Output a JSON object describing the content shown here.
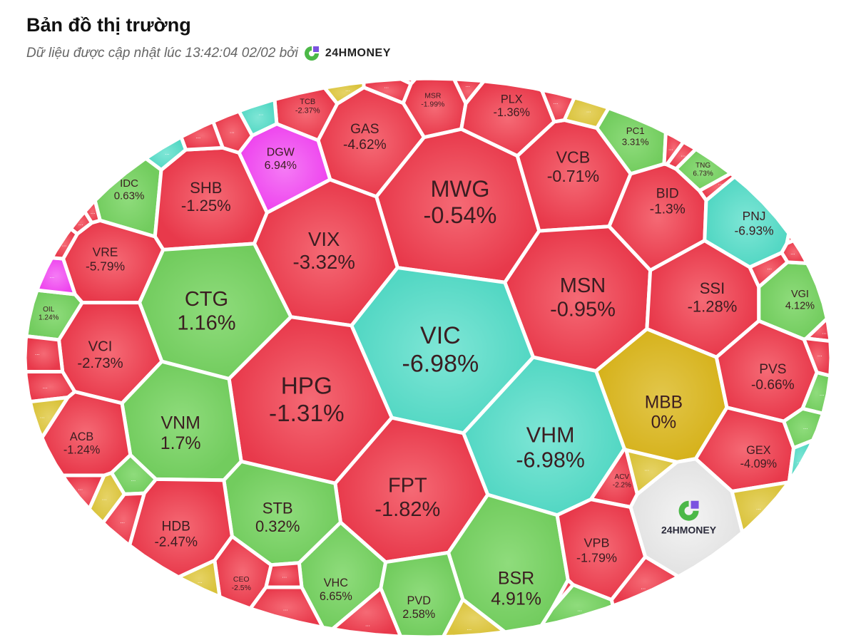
{
  "header": {
    "title": "Bản đồ thị trường",
    "subtitle": "Dữ liệu được cập nhật lúc 13:42:04 02/02 bởi",
    "brand": "24HMONEY"
  },
  "colors": {
    "red": "#e8394b",
    "green": "#72cc5e",
    "teal": "#52d7c3",
    "magenta": "#ee44ee",
    "gold": "#d6b21c",
    "grey": "#e2e2e2",
    "yellow": "#d9c23a"
  },
  "cells": [
    {
      "ticker": "TCB",
      "change": "-2.37%",
      "color": "red"
    },
    {
      "ticker": "MSR",
      "change": "-1.99%",
      "color": "red"
    },
    {
      "ticker": "GAS",
      "change": "-4.62%",
      "color": "red"
    },
    {
      "ticker": "PLX",
      "change": "-1.36%",
      "color": "red"
    },
    {
      "ticker": "DGW",
      "change": "6.94%",
      "color": "magenta"
    },
    {
      "ticker": "MWG",
      "change": "-0.54%",
      "color": "red"
    },
    {
      "ticker": "VCB",
      "change": "-0.71%",
      "color": "red"
    },
    {
      "ticker": "PC1",
      "change": "3.31%",
      "color": "green"
    },
    {
      "ticker": "TNG",
      "change": "6.73%",
      "color": "green"
    },
    {
      "ticker": "IDC",
      "change": "0.63%",
      "color": "green"
    },
    {
      "ticker": "SHB",
      "change": "-1.25%",
      "color": "red"
    },
    {
      "ticker": "VIX",
      "change": "-3.32%",
      "color": "red"
    },
    {
      "ticker": "BID",
      "change": "-1.3%",
      "color": "red"
    },
    {
      "ticker": "PNJ",
      "change": "-6.93%",
      "color": "teal"
    },
    {
      "ticker": "VRE",
      "change": "-5.79%",
      "color": "red"
    },
    {
      "ticker": "CTG",
      "change": "1.16%",
      "color": "green"
    },
    {
      "ticker": "MSN",
      "change": "-0.95%",
      "color": "red"
    },
    {
      "ticker": "SSI",
      "change": "-1.28%",
      "color": "red"
    },
    {
      "ticker": "VGI",
      "change": "4.12%",
      "color": "green"
    },
    {
      "ticker": "OIL",
      "change": "1.24%",
      "color": "green"
    },
    {
      "ticker": "VIC",
      "change": "-6.98%",
      "color": "teal"
    },
    {
      "ticker": "VCI",
      "change": "-2.73%",
      "color": "red"
    },
    {
      "ticker": "HPG",
      "change": "-1.31%",
      "color": "red"
    },
    {
      "ticker": "MBB",
      "change": "0%",
      "color": "gold"
    },
    {
      "ticker": "PVS",
      "change": "-0.66%",
      "color": "red"
    },
    {
      "ticker": "VNM",
      "change": "1.7%",
      "color": "green"
    },
    {
      "ticker": "ACB",
      "change": "-1.24%",
      "color": "red"
    },
    {
      "ticker": "VHM",
      "change": "-6.98%",
      "color": "teal"
    },
    {
      "ticker": "FPT",
      "change": "-1.82%",
      "color": "red"
    },
    {
      "ticker": "GEX",
      "change": "-4.09%",
      "color": "red"
    },
    {
      "ticker": "STB",
      "change": "0.32%",
      "color": "green"
    },
    {
      "ticker": "ACV",
      "change": "-2.2%",
      "color": "red"
    },
    {
      "ticker": "HDB",
      "change": "-2.47%",
      "color": "red"
    },
    {
      "ticker": "BSR",
      "change": "4.91%",
      "color": "green"
    },
    {
      "ticker": "VPB",
      "change": "-1.79%",
      "color": "red"
    },
    {
      "ticker": "CEO",
      "change": "-2.5%",
      "color": "red"
    },
    {
      "ticker": "VHC",
      "change": "6.65%",
      "color": "green"
    },
    {
      "ticker": "PVD",
      "change": "2.58%",
      "color": "green"
    }
  ],
  "logo_cell": {
    "brand": "24HMONEY",
    "color": "grey"
  },
  "small_cells": {
    "label": "...",
    "colors": [
      "teal",
      "red",
      "red",
      "teal",
      "yellow",
      "red",
      "red",
      "red",
      "yellow",
      "red",
      "red",
      "red",
      "red",
      "red",
      "red",
      "red",
      "red",
      "green",
      "green",
      "teal",
      "yellow",
      "magenta",
      "red",
      "red",
      "red",
      "red",
      "red",
      "yellow",
      "red",
      "yellow",
      "green",
      "red",
      "yellow",
      "red",
      "red",
      "red",
      "yellow",
      "red",
      "green",
      "red",
      "yellow",
      "red",
      "red"
    ]
  }
}
